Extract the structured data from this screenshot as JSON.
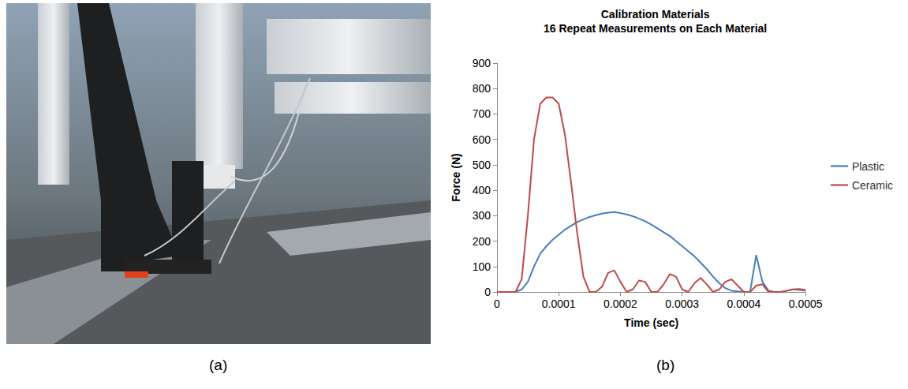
{
  "figure": {
    "panel_labels": [
      "(a)",
      "(b)"
    ]
  },
  "chart_data": {
    "type": "line",
    "title": "Calibration Materials",
    "subtitle": "16 Repeat Measurements on Each Material",
    "x_label": "Time (sec)",
    "y_label": "Force (N)",
    "x": [
      0,
      1e-05,
      2e-05,
      3e-05,
      4e-05,
      5e-05,
      6e-05,
      7e-05,
      8e-05,
      9e-05,
      0.0001,
      0.00011,
      0.00012,
      0.00013,
      0.00014,
      0.00015,
      0.00016,
      0.00017,
      0.00018,
      0.00019,
      0.0002,
      0.00021,
      0.00022,
      0.00023,
      0.00024,
      0.00025,
      0.00026,
      0.00027,
      0.00028,
      0.00029,
      0.0003,
      0.00031,
      0.00032,
      0.00033,
      0.00034,
      0.00035,
      0.00036,
      0.00037,
      0.00038,
      0.00039,
      0.0004,
      0.00041,
      0.00042,
      0.00043,
      0.00044,
      0.00045,
      0.00046,
      0.00047,
      0.00048,
      0.00049,
      0.0005
    ],
    "series": [
      {
        "name": "Plastic",
        "color": "#4a7ebb",
        "values": [
          0,
          0,
          0,
          0,
          10,
          40,
          100,
          150,
          180,
          205,
          225,
          245,
          260,
          275,
          285,
          295,
          302,
          308,
          312,
          314,
          310,
          305,
          298,
          288,
          278,
          265,
          250,
          235,
          220,
          200,
          180,
          160,
          140,
          115,
          90,
          60,
          35,
          15,
          5,
          2,
          0,
          0,
          145,
          40,
          5,
          0,
          0,
          5,
          10,
          8,
          5
        ]
      },
      {
        "name": "Ceramic",
        "color": "#be4b48",
        "values": [
          0,
          0,
          0,
          0,
          50,
          300,
          600,
          740,
          765,
          765,
          740,
          620,
          430,
          230,
          60,
          0,
          0,
          20,
          75,
          85,
          40,
          0,
          10,
          45,
          40,
          0,
          0,
          30,
          70,
          60,
          10,
          0,
          35,
          55,
          30,
          0,
          10,
          40,
          50,
          25,
          0,
          0,
          25,
          30,
          0,
          0,
          0,
          5,
          10,
          12,
          8
        ]
      }
    ],
    "xlim": [
      0,
      0.0005
    ],
    "xticks": [
      0,
      0.0001,
      0.0002,
      0.0003,
      0.0004,
      0.0005
    ],
    "ylim": [
      0,
      900
    ],
    "yticks": [
      0,
      100,
      200,
      300,
      400,
      500,
      600,
      700,
      800,
      900
    ],
    "grid": false,
    "legend": "right"
  }
}
